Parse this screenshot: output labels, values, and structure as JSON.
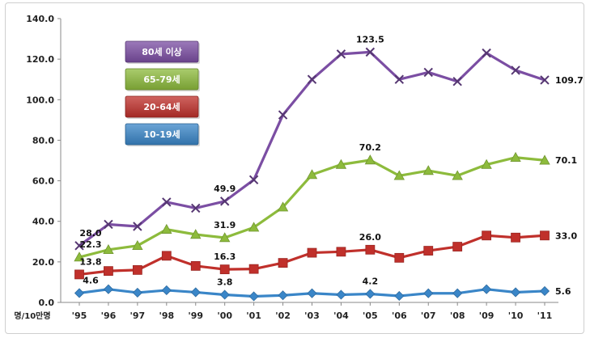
{
  "chart_data": {
    "type": "line",
    "title": "",
    "xlabel": "",
    "ylabel": "명/10만명",
    "ylim": [
      0,
      140
    ],
    "yticks": [
      "0.0",
      "20.0",
      "40.0",
      "60.0",
      "80.0",
      "100.0",
      "120.0",
      "140.0"
    ],
    "categories": [
      "'95",
      "'96",
      "'97",
      "'98",
      "'99",
      "'00",
      "'01",
      "'02",
      "'03",
      "'04",
      "'05",
      "'06",
      "'07",
      "'08",
      "'09",
      "'10",
      "'11"
    ],
    "series": [
      {
        "name": "80세 이상",
        "color": "#7b4ea3",
        "marker": "x",
        "values": [
          28.0,
          38.5,
          37.5,
          49.5,
          46.5,
          49.9,
          60.5,
          92.5,
          110.0,
          122.5,
          123.5,
          110.0,
          113.5,
          109.0,
          123.0,
          114.5,
          109.7
        ],
        "labels": [
          {
            "index": 0,
            "text": "28.0"
          },
          {
            "index": 5,
            "text": "49.9"
          },
          {
            "index": 10,
            "text": "123.5"
          },
          {
            "index": 16,
            "text": "109.7"
          }
        ]
      },
      {
        "name": "65-79세",
        "color": "#8dbb3c",
        "marker": "triangle",
        "values": [
          22.3,
          26.0,
          28.0,
          36.0,
          33.5,
          31.9,
          37.0,
          47.0,
          63.0,
          68.0,
          70.2,
          62.5,
          65.0,
          62.5,
          68.0,
          71.5,
          70.1
        ],
        "labels": [
          {
            "index": 0,
            "text": "22.3"
          },
          {
            "index": 5,
            "text": "31.9"
          },
          {
            "index": 10,
            "text": "70.2"
          },
          {
            "index": 16,
            "text": "70.1"
          }
        ]
      },
      {
        "name": "20-64세",
        "color": "#c0302b",
        "marker": "square",
        "values": [
          13.8,
          15.5,
          16.0,
          23.0,
          18.0,
          16.3,
          16.5,
          19.5,
          24.5,
          25.0,
          26.0,
          22.0,
          25.5,
          27.5,
          33.0,
          32.0,
          33.0
        ],
        "labels": [
          {
            "index": 0,
            "text": "13.8"
          },
          {
            "index": 5,
            "text": "16.3"
          },
          {
            "index": 10,
            "text": "26.0"
          },
          {
            "index": 16,
            "text": "33.0"
          }
        ]
      },
      {
        "name": "10-19세",
        "color": "#3a86c8",
        "marker": "diamond",
        "values": [
          4.6,
          6.5,
          4.8,
          6.0,
          5.0,
          3.8,
          3.0,
          3.5,
          4.5,
          3.8,
          4.2,
          3.2,
          4.5,
          4.5,
          6.5,
          5.0,
          5.6
        ],
        "labels": [
          {
            "index": 0,
            "text": "4.6"
          },
          {
            "index": 5,
            "text": "3.8"
          },
          {
            "index": 10,
            "text": "4.2"
          },
          {
            "index": 16,
            "text": "5.6"
          }
        ]
      }
    ],
    "legend": {
      "placement": "top-left",
      "items": [
        {
          "label": "80세 이상",
          "color": "#7b4ea3"
        },
        {
          "label": "65-79세",
          "color": "#8dbb3c"
        },
        {
          "label": "20-64세",
          "color": "#c0302b"
        },
        {
          "label": "10-19세",
          "color": "#3a86c8"
        }
      ]
    },
    "grid": false
  }
}
